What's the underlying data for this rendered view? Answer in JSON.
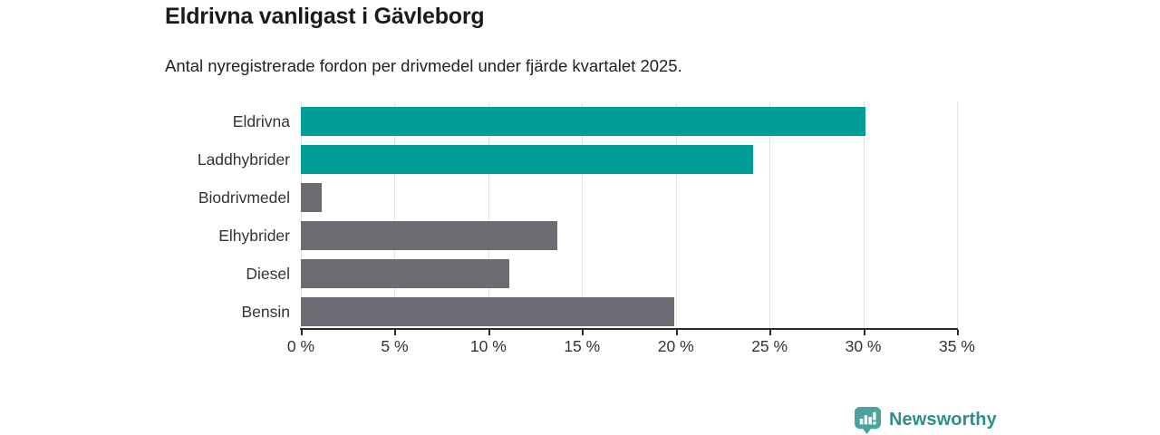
{
  "header": {
    "title": "Eldrivna vanligast i Gävleborg",
    "subtitle": "Antal nyregistrerade fordon per drivmedel under fjärde kvartalet 2025."
  },
  "chart_data": {
    "type": "bar",
    "orientation": "horizontal",
    "title": "Eldrivna vanligast i Gävleborg",
    "subtitle": "Antal nyregistrerade fordon per drivmedel under fjärde kvartalet 2025.",
    "categories": [
      "Eldrivna",
      "Laddhybrider",
      "Biodrivmedel",
      "Elhybrider",
      "Diesel",
      "Bensin"
    ],
    "values": [
      30.1,
      24.1,
      1.1,
      13.7,
      11.1,
      19.9
    ],
    "unit": "%",
    "bar_colors": [
      "#009E94",
      "#009E94",
      "#6C6C72",
      "#6C6C72",
      "#6C6C72",
      "#6C6C72"
    ],
    "xlim": [
      0,
      35
    ],
    "x_tick_values": [
      0,
      5,
      10,
      15,
      20,
      25,
      30,
      35
    ],
    "x_tick_labels": [
      "0 %",
      "5 %",
      "10 %",
      "15 %",
      "20 %",
      "25 %",
      "30 %",
      "35 %"
    ],
    "xlabel": "",
    "ylabel": "",
    "grid": "vertical",
    "legend": "none"
  },
  "colors": {
    "highlight": "#009E94",
    "default_bar": "#6C6C72",
    "axis": "#2B2B2B",
    "gridline": "#E3E3E3",
    "title_text": "#1A1A1A",
    "label_text": "#333333",
    "logo_icon": "#4AA49E",
    "logo_text": "#2E8E89"
  },
  "branding": {
    "logo_text": "Newsworthy",
    "logo_icon": "bar-chart-speech-bubble-icon"
  }
}
